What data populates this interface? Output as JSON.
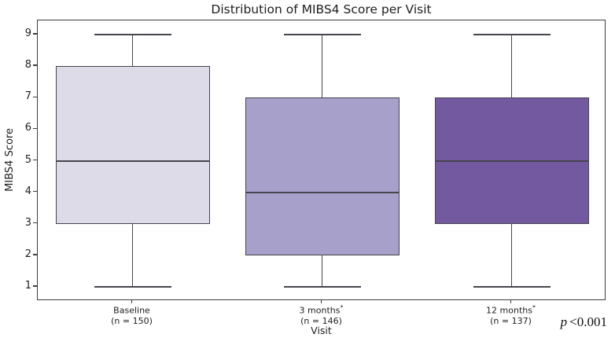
{
  "annotation": {
    "p_italic": "p",
    "p_value": "<0.001"
  },
  "chart_data": {
    "type": "box",
    "title": "Distribution of MIBS4 Score per Visit",
    "xlabel": "Visit",
    "ylabel": "MIBS4 Score",
    "ylim": [
      0.55,
      9.45
    ],
    "yticks": [
      1,
      2,
      3,
      4,
      5,
      6,
      7,
      8,
      9
    ],
    "grid": false,
    "legend": "none",
    "line_color": "#45454d",
    "annotation": "p <0.001",
    "boxes": [
      {
        "label": "Baseline",
        "sup": "",
        "n_label": "(n = 150)",
        "n": 150,
        "whisker_low": 1,
        "q1": 3,
        "median": 5,
        "q3": 8,
        "whisker_high": 9,
        "fill": "#dcdbe7"
      },
      {
        "label": "3 months",
        "sup": "*",
        "n_label": "(n = 146)",
        "n": 146,
        "whisker_low": 1,
        "q1": 2,
        "median": 4,
        "q3": 7,
        "whisker_high": 9,
        "fill": "#a6a0cb"
      },
      {
        "label": "12 months",
        "sup": "*",
        "n_label": "(n = 137)",
        "n": 137,
        "whisker_low": 1,
        "q1": 3,
        "median": 5,
        "q3": 7,
        "whisker_high": 9,
        "fill": "#735aa0"
      }
    ]
  }
}
